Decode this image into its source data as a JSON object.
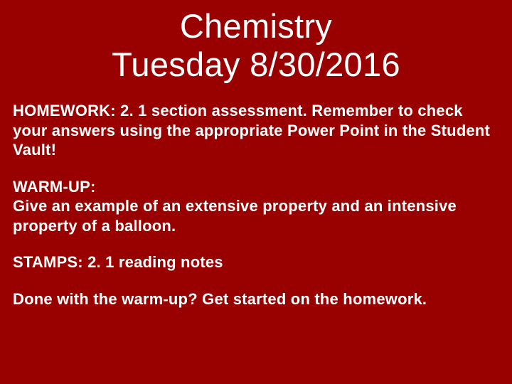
{
  "background_color": "#990000",
  "text_color": "#ffffff",
  "title": {
    "line1": "Chemistry",
    "line2": "Tuesday 8/30/2016",
    "fontsize": 47,
    "fontweight": "normal"
  },
  "body": {
    "fontsize": 22,
    "fontweight": "bold",
    "paragraphs": {
      "homework": "HOMEWORK:  2. 1 section assessment.  Remember to check your answers using the appropriate Power Point in the Student Vault!",
      "warmup_label": "WARM-UP:",
      "warmup_text": "Give an example of an extensive property and an intensive property of a balloon.",
      "stamps": "STAMPS:  2. 1 reading notes",
      "footer": "Done with the warm-up?  Get started on the homework."
    }
  }
}
